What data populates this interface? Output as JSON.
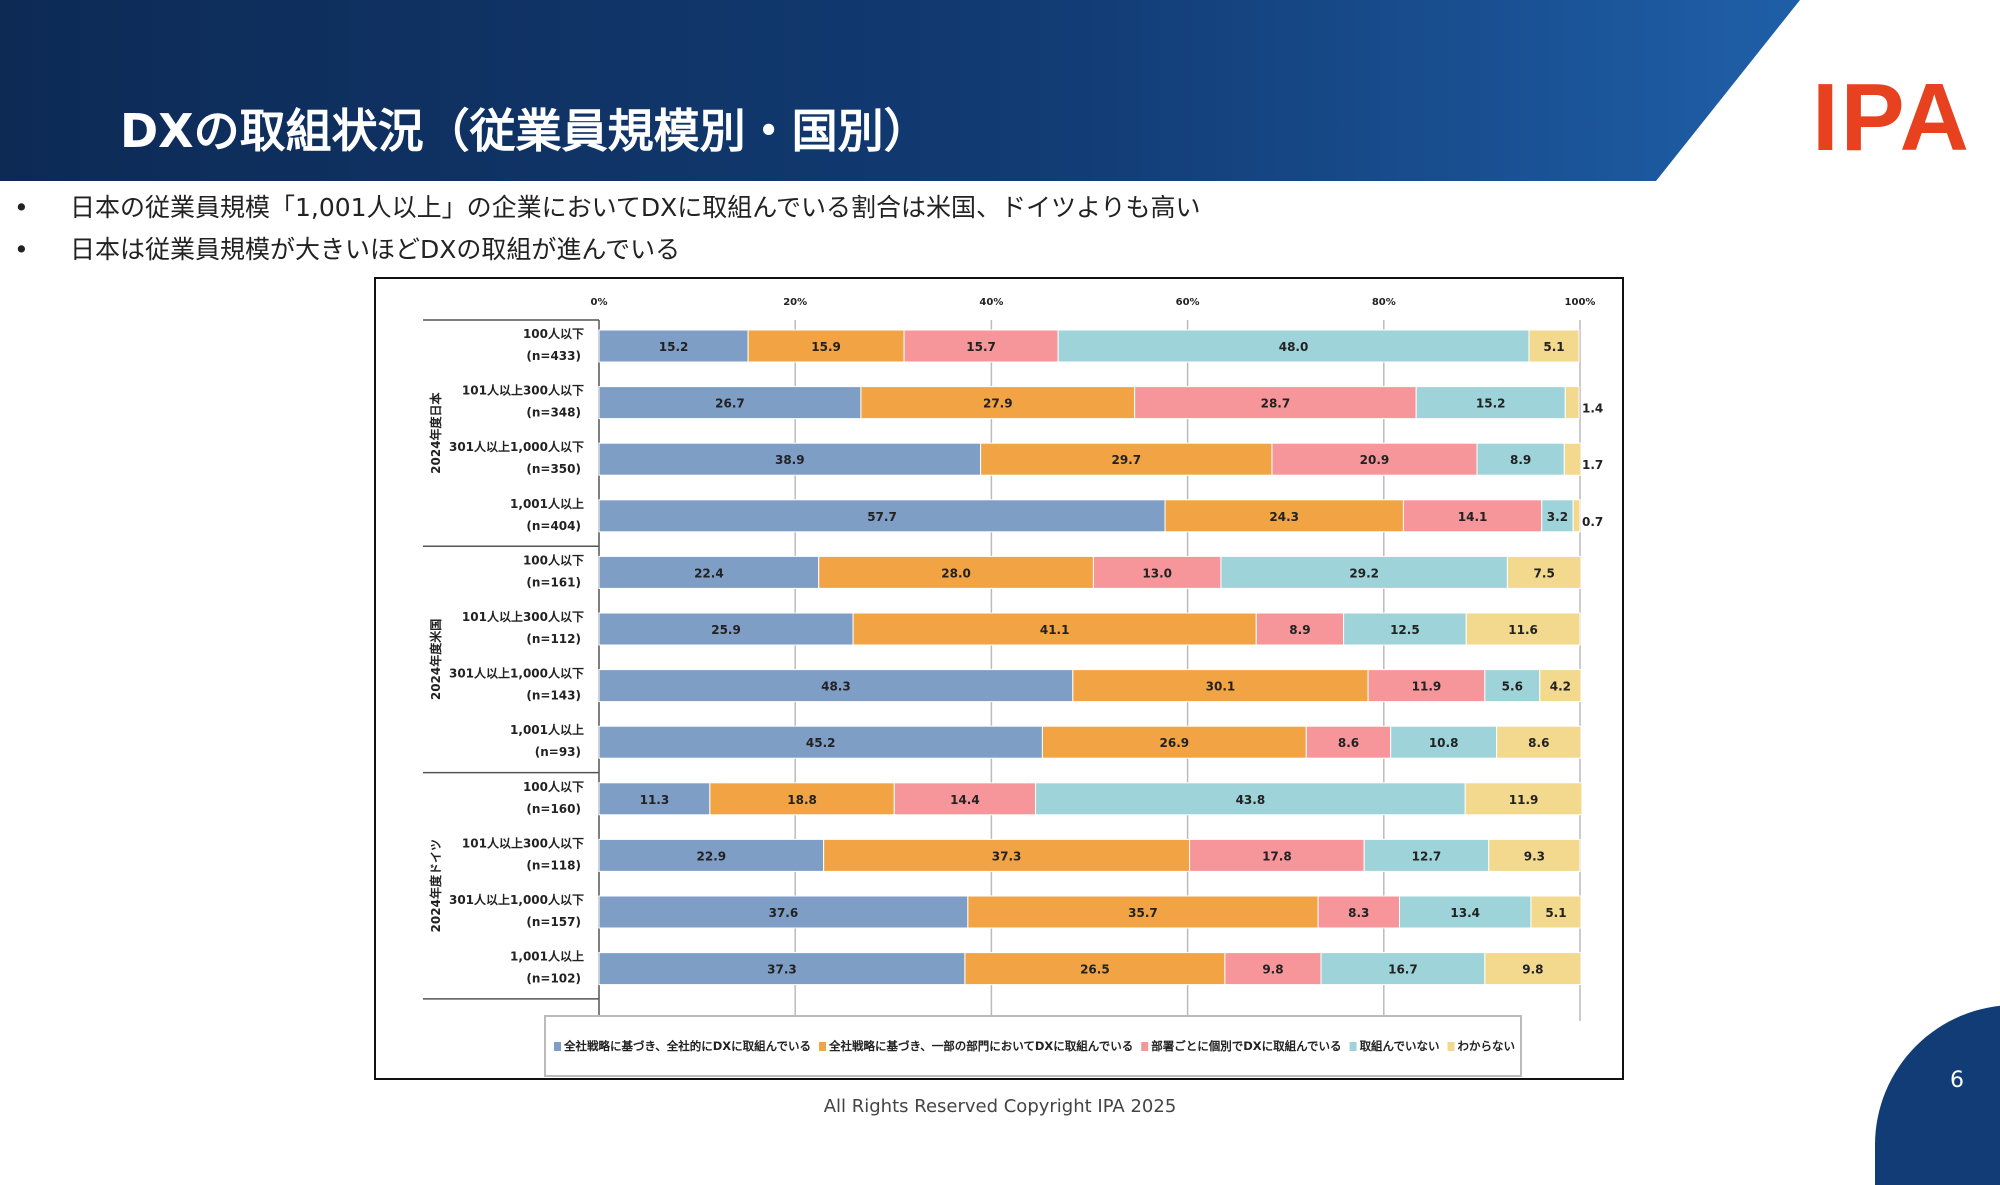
{
  "header": {
    "title": "DXの取組状況（従業員規模別・国別）",
    "logo": "IPA"
  },
  "bullets": [
    "日本の従業員規模「1,001人以上」の企業においてDXに取組んでいる割合は米国、ドイツよりも高い",
    "日本は従業員規模が大きいほどDXの取組が進んでいる"
  ],
  "footer": {
    "copyright": "All Rights Reserved Copyright IPA 2025",
    "page": "6"
  },
  "chart_data": {
    "type": "bar",
    "orientation": "horizontal",
    "stacked": true,
    "percent": true,
    "xlim": [
      0,
      100
    ],
    "xticks": [
      "0%",
      "20%",
      "40%",
      "60%",
      "80%",
      "100%"
    ],
    "grid": true,
    "legend_position": "bottom",
    "groups": [
      {
        "name": "2024年度日本",
        "rows": [
          [
            "100人以下",
            "(n=433)"
          ],
          [
            "101人以上300人以下",
            "(n=348)"
          ],
          [
            "301人以上1,000人以下",
            "(n=350)"
          ],
          [
            "1,001人以上",
            "(n=404)"
          ]
        ]
      },
      {
        "name": "2024年度米国",
        "rows": [
          [
            "100人以下",
            "(n=161)"
          ],
          [
            "101人以上300人以下",
            "(n=112)"
          ],
          [
            "301人以上1,000人以下",
            "(n=143)"
          ],
          [
            "1,001人以上",
            "(n=93)"
          ]
        ]
      },
      {
        "name": "2024年度ドイツ",
        "rows": [
          [
            "100人以下",
            "(n=160)"
          ],
          [
            "101人以上300人以下",
            "(n=118)"
          ],
          [
            "301人以上1,000人以下",
            "(n=157)"
          ],
          [
            "1,001人以上",
            "(n=102)"
          ]
        ]
      }
    ],
    "series": [
      {
        "name": "全社戦略に基づき、全社的にDXに取組んでいる",
        "color": "#7f9ec6",
        "values": [
          15.2,
          26.7,
          38.9,
          57.7,
          22.4,
          25.9,
          48.3,
          45.2,
          11.3,
          22.9,
          37.6,
          37.3
        ]
      },
      {
        "name": "全社戦略に基づき、一部の部門においてDXに取組んでいる",
        "color": "#f2a444",
        "values": [
          15.9,
          27.9,
          29.7,
          24.3,
          28.0,
          41.1,
          30.1,
          26.9,
          18.8,
          37.3,
          35.7,
          26.5
        ]
      },
      {
        "name": "部署ごとに個別でDXに取組んでいる",
        "color": "#f7969a",
        "values": [
          15.7,
          28.7,
          20.9,
          14.1,
          13.0,
          8.9,
          11.9,
          8.6,
          14.4,
          17.8,
          8.3,
          9.8
        ]
      },
      {
        "name": "取組んでいない",
        "color": "#9ed3da",
        "values": [
          48.0,
          15.2,
          8.9,
          3.2,
          29.2,
          12.5,
          5.6,
          10.8,
          43.8,
          12.7,
          13.4,
          16.7
        ]
      },
      {
        "name": "わからない",
        "color": "#f2d98e",
        "values": [
          5.1,
          1.4,
          1.7,
          0.7,
          7.5,
          11.6,
          4.2,
          8.6,
          11.9,
          9.3,
          5.1,
          9.8
        ]
      }
    ]
  }
}
